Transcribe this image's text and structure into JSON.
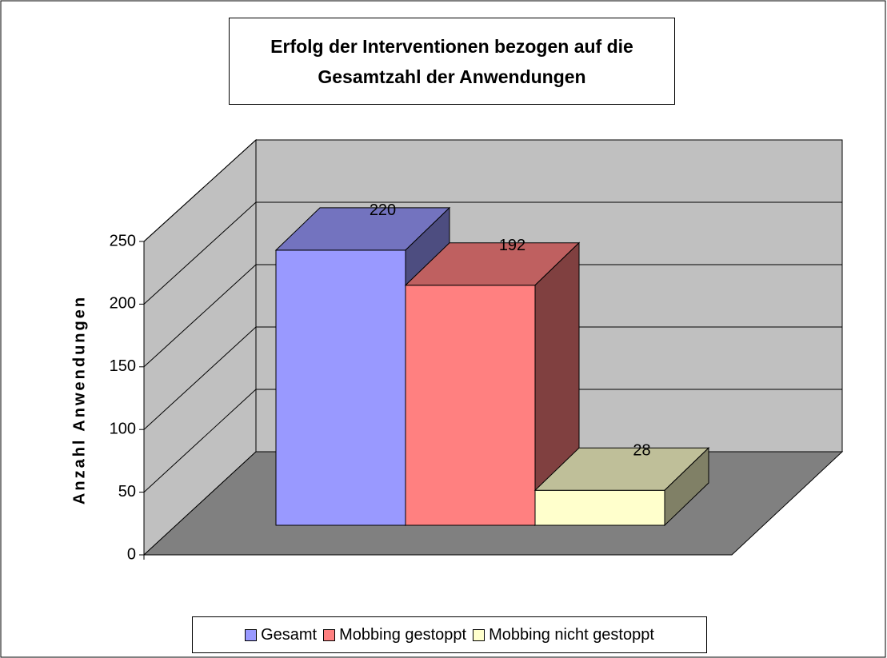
{
  "chart_data": {
    "type": "bar3d",
    "title": "Erfolg der Interventionen bezogen auf die Gesamtzahl der Anwendungen",
    "y_label": "Anzahl Anwendungen",
    "series": [
      {
        "name": "Gesamt",
        "color": "#9999ff",
        "values": [
          220
        ]
      },
      {
        "name": "Mobbing gestoppt",
        "color": "#ff8080",
        "values": [
          192
        ]
      },
      {
        "name": "Mobbing nicht gestoppt",
        "color": "#ffffcc",
        "values": [
          28
        ]
      }
    ],
    "ylim": [
      0,
      250
    ],
    "yticks": [
      0,
      50,
      100,
      150,
      200,
      250
    ],
    "grid": true,
    "legend": "bottom"
  }
}
